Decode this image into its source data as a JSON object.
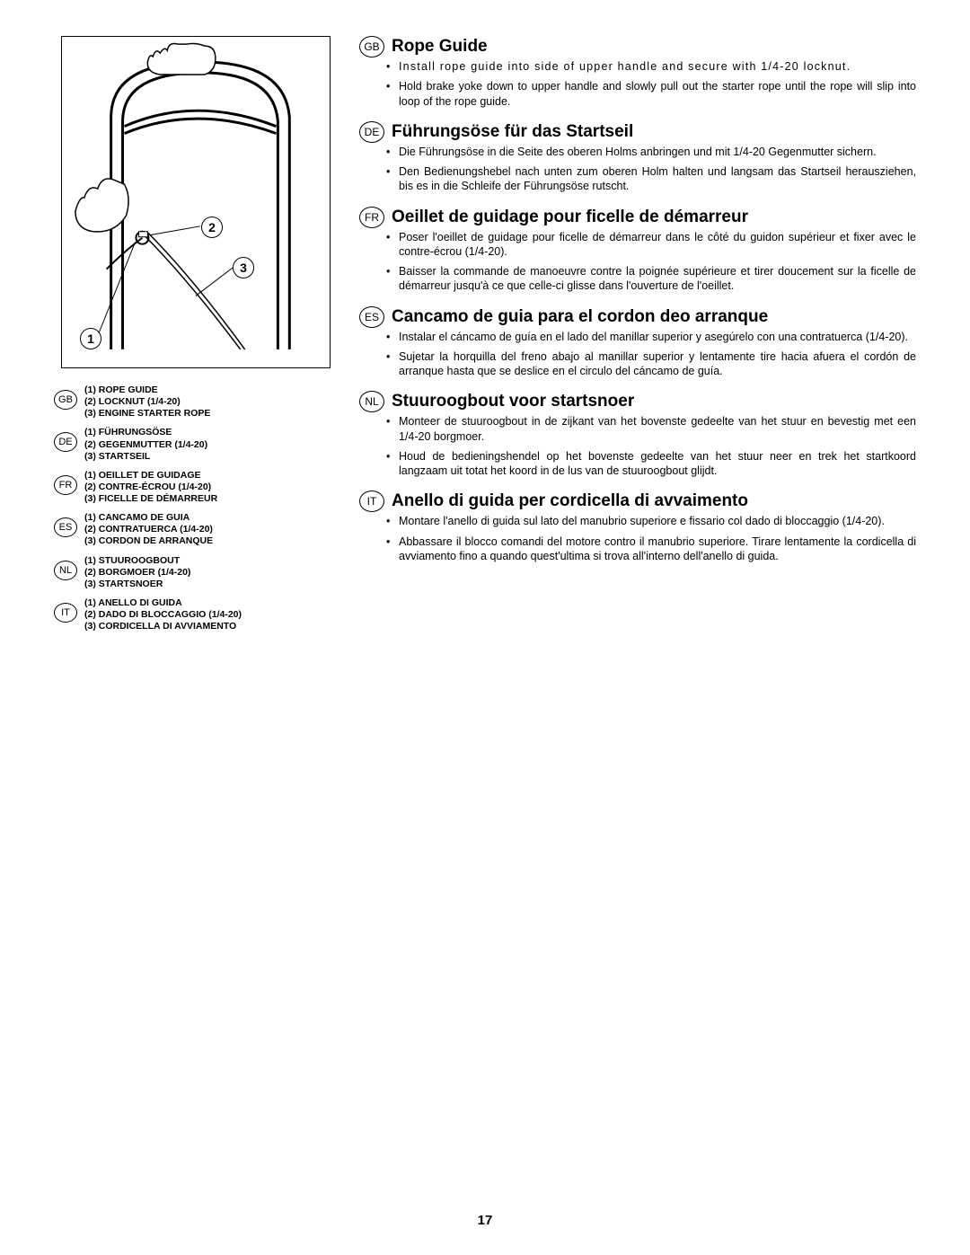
{
  "page_number": "17",
  "diagram": {
    "callouts": {
      "c1": "1",
      "c2": "2",
      "c3": "3"
    }
  },
  "legend": [
    {
      "code": "GB",
      "lines": [
        "(1)  ROPE GUIDE",
        "(2)  LOCKNUT (1/4-20)",
        "(3)  ENGINE STARTER ROPE"
      ]
    },
    {
      "code": "DE",
      "lines": [
        "(1)  FÜHRUNGSÖSE",
        "(2)  GEGENMUTTER (1/4-20)",
        "(3)  STARTSEIL"
      ]
    },
    {
      "code": "FR",
      "lines": [
        "(1)  OEILLET DE GUIDAGE",
        "(2)  CONTRE-ÉCROU (1/4-20)",
        "(3)  FICELLE DE DÉMARREUR"
      ]
    },
    {
      "code": "ES",
      "lines": [
        "(1)  CANCAMO DE GUIA",
        "(2)  CONTRATUERCA (1/4-20)",
        "(3)  CORDON DE ARRANQUE"
      ]
    },
    {
      "code": "NL",
      "lines": [
        "(1)  STUUROOGBOUT",
        "(2)  BORGMOER (1/4-20)",
        "(3)  STARTSNOER"
      ]
    },
    {
      "code": "IT",
      "lines": [
        "(1)  ANELLO DI GUIDA",
        "(2)  DADO DI BLOCCAGGIO (1/4-20)",
        "(3)  CORDICELLA DI AVVIAMENTO"
      ]
    }
  ],
  "sections": [
    {
      "code": "GB",
      "title": "Rope Guide",
      "bullets": [
        "Install rope guide into side of upper handle and secure with 1/4-20 locknut.",
        "Hold brake yoke down to upper handle and slowly pull out the starter rope until the rope will slip into loop of the rope guide."
      ],
      "spread_first": true
    },
    {
      "code": "DE",
      "title": "Führungsöse für das Startseil",
      "bullets": [
        "Die Führungsöse in die Seite des oberen Holms anbringen und mit 1/4-20 Gegenmutter sichern.",
        "Den Bedienungshebel nach unten zum oberen Holm halten und langsam das Startseil herausziehen, bis es in die Schleife der Führungsöse rutscht."
      ]
    },
    {
      "code": "FR",
      "title": "Oeillet de guidage pour ficelle de démarreur",
      "bullets": [
        "Poser l'oeillet de guidage pour ficelle de démarreur dans le côté du guidon supérieur et fixer avec le contre-écrou (1/4-20).",
        "Baisser la commande de manoeuvre contre la poignée supérieure et tirer doucement sur la ficelle de démarreur jusqu'à ce que celle-ci glisse dans l'ouverture de l'oeillet."
      ]
    },
    {
      "code": "ES",
      "title": "Cancamo de guia para el cordon deo arranque",
      "bullets": [
        "Instalar el cáncamo de guía en el lado del manillar superior y asegúrelo con una contratuerca (1/4-20).",
        "Sujetar la horquilla del freno abajo al manillar superior y lentamente tire hacia afuera el cordón de arranque hasta que se deslice en el circulo del cáncamo de guía."
      ]
    },
    {
      "code": "NL",
      "title": "Stuuroogbout voor startsnoer",
      "bullets": [
        "Monteer de stuuroogbout in de zijkant van het bovenste gedeelte van het stuur en bevestig met een 1/4-20 borgmoer.",
        "Houd de bedieningshendel op het bovenste gedeelte van het stuur neer en trek het startkoord langzaam uit totat het koord in de lus van de stuuroogbout glijdt."
      ]
    },
    {
      "code": "IT",
      "title": "Anello di guida per cordicella di avvaimento",
      "bullets": [
        "Montare l'anello di guida sul lato del manubrio superiore e fissario col dado di bloccaggio (1/4-20).",
        "Abbassare il blocco comandi del motore contro il manubrio superiore. Tirare lentamente la cordicella di avviamento fino a quando quest'ultima si trova all'interno dell'anello di guida."
      ]
    }
  ]
}
